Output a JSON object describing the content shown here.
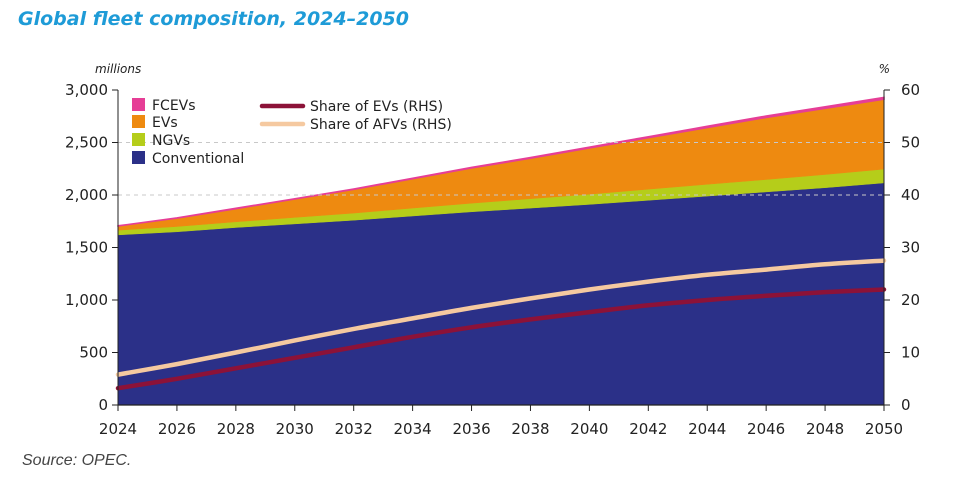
{
  "title": "Global fleet composition, 2024–2050",
  "source": "Source: OPEC.",
  "chart_data": {
    "type": "area",
    "x": [
      2024,
      2026,
      2028,
      2030,
      2032,
      2034,
      2036,
      2038,
      2040,
      2042,
      2044,
      2046,
      2048,
      2050
    ],
    "xticks": [
      "2024",
      "2026",
      "2028",
      "2030",
      "2032",
      "2034",
      "2036",
      "2038",
      "2040",
      "2042",
      "2044",
      "2046",
      "2048",
      "2050"
    ],
    "y_left": {
      "unit": "millions",
      "ylim": [
        0,
        3000
      ],
      "ticks": [
        "0",
        "500",
        "1,000",
        "1,500",
        "2,000",
        "2,500",
        "3,000"
      ],
      "tick_values": [
        0,
        500,
        1000,
        1500,
        2000,
        2500,
        3000
      ]
    },
    "y_right": {
      "unit": "%",
      "ylim": [
        0,
        60
      ],
      "ticks": [
        "0",
        "10",
        "20",
        "30",
        "40",
        "50",
        "60"
      ],
      "tick_values": [
        0,
        10,
        20,
        30,
        40,
        50,
        60
      ]
    },
    "stacked_series": [
      {
        "name": "Conventional",
        "color": "#2b3088",
        "values": [
          1620,
          1650,
          1690,
          1725,
          1760,
          1800,
          1840,
          1875,
          1910,
          1950,
          1990,
          2030,
          2070,
          2115
        ]
      },
      {
        "name": "NGVs",
        "color": "#b5cd1a",
        "values": [
          45,
          50,
          55,
          62,
          68,
          75,
          82,
          90,
          98,
          105,
          112,
          118,
          125,
          132
        ]
      },
      {
        "name": "EVs",
        "color": "#ee8a10",
        "values": [
          40,
          80,
          125,
          175,
          225,
          280,
          335,
          385,
          440,
          490,
          540,
          590,
          630,
          665
        ]
      },
      {
        "name": "FCEVs",
        "color": "#e63e96",
        "values": [
          2,
          2,
          3,
          3,
          4,
          5,
          6,
          7,
          8,
          10,
          12,
          14,
          16,
          18
        ]
      }
    ],
    "line_series": [
      {
        "name": "Share of EVs (RHS)",
        "color": "#8c1238",
        "axis": "right",
        "values": [
          3.2,
          5.0,
          7.0,
          9.0,
          11.0,
          13.0,
          14.8,
          16.3,
          17.7,
          19.0,
          20.0,
          20.8,
          21.5,
          22.0
        ]
      },
      {
        "name": "Share of AFVs (RHS)",
        "color": "#f5c9a0",
        "axis": "right",
        "values": [
          5.8,
          7.8,
          10.0,
          12.3,
          14.5,
          16.5,
          18.5,
          20.3,
          22.0,
          23.5,
          24.8,
          25.8,
          26.8,
          27.5
        ]
      }
    ],
    "legend": [
      "FCEVs",
      "EVs",
      "NGVs",
      "Conventional",
      "Share of EVs (RHS)",
      "Share of AFVs (RHS)"
    ],
    "legend_position": "top-left",
    "grid": "dashed horizontal at 2,000 and 2,500"
  }
}
